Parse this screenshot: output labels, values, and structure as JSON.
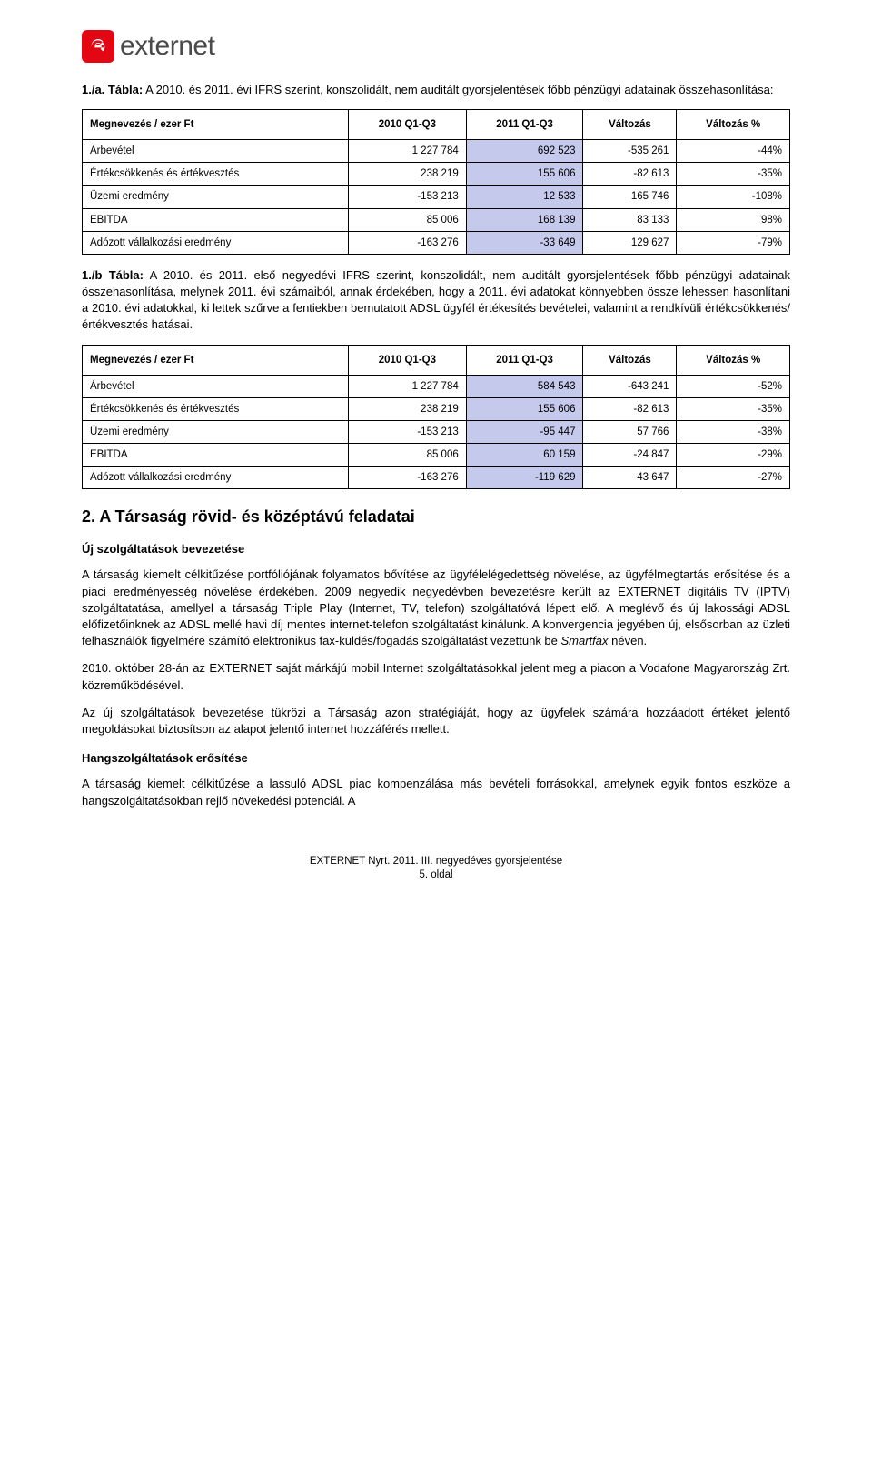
{
  "logo": {
    "text": "externet"
  },
  "section1a": {
    "title_bold": "1./a. Tábla:",
    "title_rest": " A 2010. és 2011. évi IFRS szerint, konszolidált, nem auditált gyorsjelentések főbb pénzügyi adatainak összehasonlítása:"
  },
  "table1": {
    "headers": [
      "Megnevezés / ezer Ft",
      "2010 Q1-Q3",
      "2011 Q1-Q3",
      "Változás",
      "Változás %"
    ],
    "rows": [
      {
        "label": "Árbevétel",
        "c1": "1 227 784",
        "c2": "692 523",
        "c3": "-535 261",
        "c4": "-44%"
      },
      {
        "label": "Értékcsökkenés és értékvesztés",
        "c1": "238 219",
        "c2": "155 606",
        "c3": "-82 613",
        "c4": "-35%"
      },
      {
        "label": "Üzemi eredmény",
        "c1": "-153 213",
        "c2": "12 533",
        "c3": "165 746",
        "c4": "-108%"
      },
      {
        "label": "EBITDA",
        "c1": "85 006",
        "c2": "168 139",
        "c3": "83 133",
        "c4": "98%"
      },
      {
        "label": "Adózott vállalkozási eredmény",
        "c1": "-163 276",
        "c2": "-33 649",
        "c3": "129 627",
        "c4": "-79%"
      }
    ],
    "highlight_col_idx": 2,
    "cell_bg_highlight": "#c5c9ec"
  },
  "section1b": {
    "title_bold": "1./b Tábla:",
    "title_rest": " A 2010. és 2011. első negyedévi IFRS szerint, konszolidált, nem auditált gyorsjelentések főbb pénzügyi adatainak összehasonlítása, melynek 2011. évi számaiból, annak érdekében, hogy a 2011. évi adatokat könnyebben össze lehessen hasonlítani a 2010. évi adatokkal, ki lettek szűrve a fentiekben bemutatott ADSL ügyfél értékesítés bevételei, valamint a rendkívüli értékcsökkenés/értékvesztés hatásai."
  },
  "table2": {
    "headers": [
      "Megnevezés / ezer Ft",
      "2010 Q1-Q3",
      "2011 Q1-Q3",
      "Változás",
      "Változás %"
    ],
    "rows": [
      {
        "label": "Árbevétel",
        "c1": "1 227 784",
        "c2": "584 543",
        "c3": "-643 241",
        "c4": "-52%"
      },
      {
        "label": "Értékcsökkenés és értékvesztés",
        "c1": "238 219",
        "c2": "155 606",
        "c3": "-82 613",
        "c4": "-35%"
      },
      {
        "label": "Üzemi eredmény",
        "c1": "-153 213",
        "c2": "-95 447",
        "c3": "57 766",
        "c4": "-38%"
      },
      {
        "label": "EBITDA",
        "c1": "85 006",
        "c2": "60 159",
        "c3": "-24 847",
        "c4": "-29%"
      },
      {
        "label": "Adózott vállalkozási eredmény",
        "c1": "-163 276",
        "c2": "-119 629",
        "c3": "43 647",
        "c4": "-27%"
      }
    ],
    "highlight_col_idx": 2,
    "cell_bg_highlight": "#c5c9ec"
  },
  "section2": {
    "heading": "2. A Társaság rövid- és középtávú feladatai",
    "sub1": {
      "title": "Új szolgáltatások bevezetése",
      "p1_pre": "A társaság kiemelt célkitűzése portfóliójának folyamatos bővítése az ügyfélelégedettség növelése, az ügyfélmegtartás erősítése és a piaci eredményesség növelése érdekében. 2009 negyedik negyedévben bevezetésre került az EXTERNET digitális TV (IPTV) szolgáltatatása, amellyel a társaság Triple Play (Internet, TV, telefon) szolgáltatóvá lépett elő. A meglévő és új lakossági ADSL előfizetőinknek az ADSL mellé havi díj mentes internet-telefon szolgáltatást kínálunk. A konvergencia jegyében új, elsősorban az üzleti felhasználók figyelmére számító elektronikus fax-küldés/fogadás szolgáltatást vezettünk be ",
      "p1_italic": "Smartfax",
      "p1_post": " néven.",
      "p2": "2010. október 28-án az EXTERNET saját márkájú mobil Internet szolgáltatásokkal jelent meg a piacon a Vodafone Magyarország Zrt. közreműködésével.",
      "p3": "Az új szolgáltatások bevezetése tükrözi a Társaság azon stratégiáját, hogy az ügyfelek számára hozzáadott értéket jelentő megoldásokat biztosítson az alapot jelentő internet hozzáférés mellett."
    },
    "sub2": {
      "title": "Hangszolgáltatások erősítése",
      "p1": "A társaság kiemelt célkitűzése a lassuló ADSL piac kompenzálása más bevételi forrásokkal, amelynek egyik fontos eszköze a hangszolgáltatásokban rejlő növekedési potenciál. A"
    }
  },
  "footer": {
    "line1": "EXTERNET Nyrt. 2011. III. negyedéves gyorsjelentése",
    "line2": "5. oldal"
  }
}
